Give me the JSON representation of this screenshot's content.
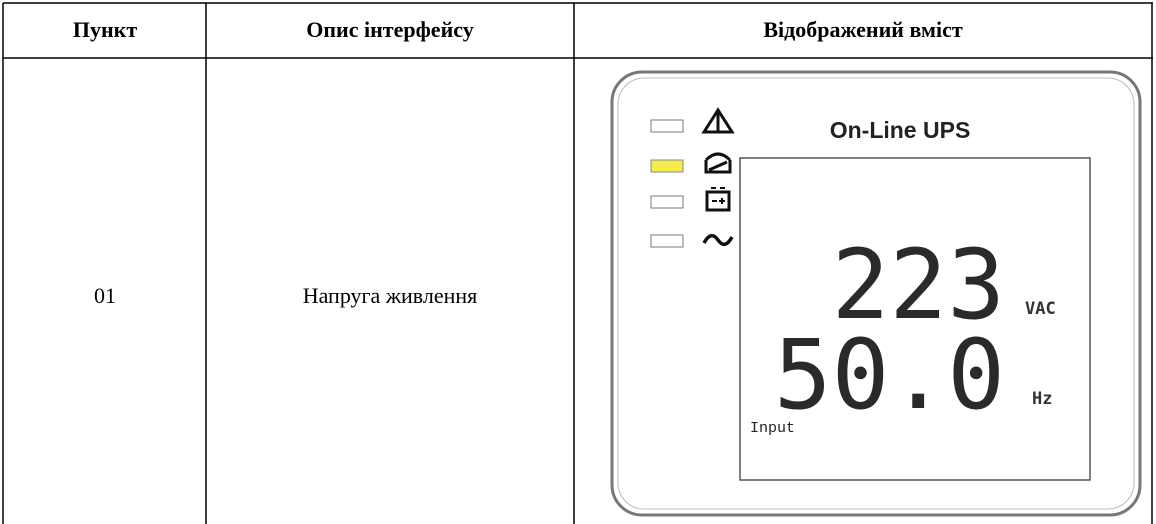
{
  "table": {
    "header": [
      "Пункт",
      "Опис інтерфейсу",
      "Відображений вміст"
    ],
    "rows": [
      [
        "01",
        "Напруга живлення"
      ]
    ]
  },
  "display": {
    "title": "On-Line UPS",
    "voltage": "223",
    "voltage_unit": "VAC",
    "frequency": "50.0",
    "frequency_unit": "Hz",
    "mode": "Input"
  }
}
